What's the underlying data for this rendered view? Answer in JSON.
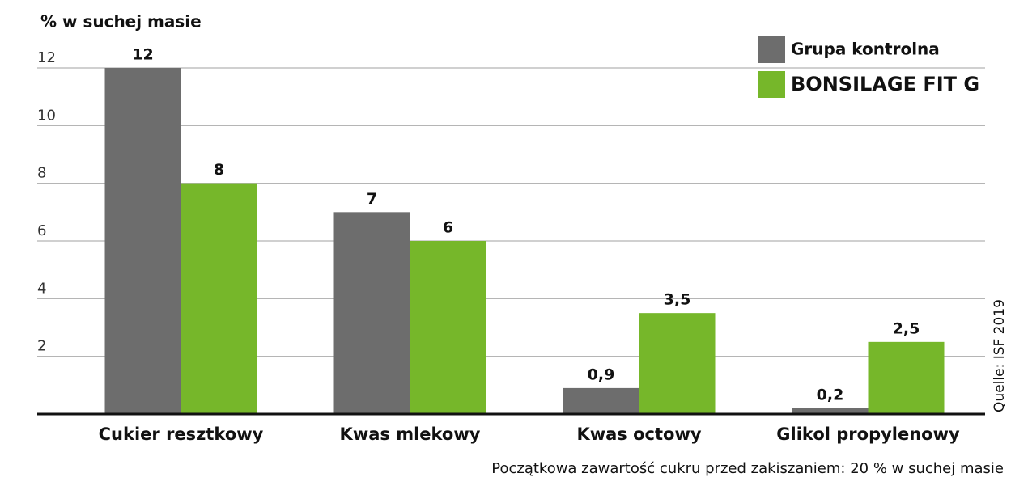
{
  "chart_data": {
    "type": "bar",
    "y_label": "% w suchej masie",
    "categories": [
      "Cukier resztkowy",
      "Kwas mlekowy",
      "Kwas octowy",
      "Glikol propylenowy"
    ],
    "series": [
      {
        "name": "Grupa kontrolna",
        "color": "#6d6d6d",
        "values": [
          12,
          7,
          0.9,
          0.2
        ],
        "value_labels": [
          "12",
          "7",
          "0,9",
          "0,2"
        ]
      },
      {
        "name": "BONSILAGE FIT G",
        "color": "#76b72a",
        "values": [
          8,
          6,
          3.5,
          2.5
        ],
        "value_labels": [
          "8",
          "6",
          "3,5",
          "2,5"
        ]
      }
    ],
    "ylim": [
      0,
      12
    ],
    "yticks": [
      2,
      4,
      6,
      8,
      10,
      12
    ],
    "grid": true,
    "source": "Quelle: ISF 2019",
    "note": "Początkowa zawartość cukru przed zakiszaniem: 20 % w suchej masie"
  }
}
